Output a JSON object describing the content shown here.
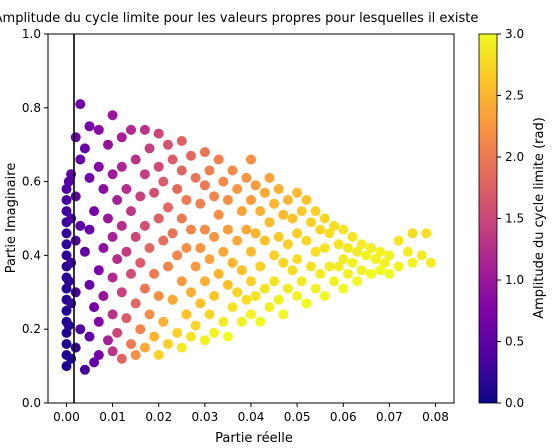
{
  "chart_data": {
    "type": "scatter",
    "title": "Amplitude du cycle limite pour les valeurs propres pour lesquelles il existe",
    "xlabel": "Partie réelle",
    "ylabel": "Partie Imaginaire",
    "xlim": [
      -0.004,
      0.084
    ],
    "ylim": [
      0.0,
      1.0
    ],
    "xticks": [
      0.0,
      0.01,
      0.02,
      0.03,
      0.04,
      0.05,
      0.06,
      0.07,
      0.08
    ],
    "xtick_labels": [
      "0.00",
      "0.01",
      "0.02",
      "0.03",
      "0.04",
      "0.05",
      "0.06",
      "0.07",
      "0.08"
    ],
    "yticks": [
      0.0,
      0.2,
      0.4,
      0.6,
      0.8,
      1.0
    ],
    "ytick_labels": [
      "0.0",
      "0.2",
      "0.4",
      "0.6",
      "0.8",
      "1.0"
    ],
    "vertical_line_x": 0.0,
    "grid": false,
    "colormap": "plasma",
    "colorbar": {
      "label": "Amplitude du cycle limite (rad)",
      "range": [
        0.0,
        3.0
      ],
      "ticks": [
        0.0,
        0.5,
        1.0,
        1.5,
        2.0,
        2.5,
        3.0
      ],
      "tick_labels": [
        "0.0",
        "0.5",
        "1.0",
        "1.5",
        "2.0",
        "2.5",
        "3.0"
      ]
    },
    "points": [
      [
        0.0,
        0.58,
        0.4
      ],
      [
        0.0,
        0.55,
        0.35
      ],
      [
        0.0,
        0.52,
        0.3
      ],
      [
        0.0,
        0.49,
        0.28
      ],
      [
        0.0,
        0.46,
        0.25
      ],
      [
        0.0,
        0.43,
        0.22
      ],
      [
        0.0,
        0.4,
        0.2
      ],
      [
        0.0,
        0.37,
        0.18
      ],
      [
        0.0,
        0.34,
        0.17
      ],
      [
        0.0,
        0.31,
        0.15
      ],
      [
        0.0,
        0.28,
        0.14
      ],
      [
        0.0,
        0.25,
        0.13
      ],
      [
        0.0,
        0.22,
        0.12
      ],
      [
        0.0,
        0.19,
        0.11
      ],
      [
        0.0,
        0.16,
        0.1
      ],
      [
        0.0,
        0.13,
        0.1
      ],
      [
        0.0,
        0.1,
        0.1
      ],
      [
        0.0005,
        0.6,
        0.45
      ],
      [
        0.0005,
        0.33,
        0.2
      ],
      [
        0.0005,
        0.21,
        0.15
      ],
      [
        0.001,
        0.62,
        0.5
      ],
      [
        0.001,
        0.5,
        0.4
      ],
      [
        0.001,
        0.38,
        0.3
      ],
      [
        0.001,
        0.27,
        0.25
      ],
      [
        0.001,
        0.12,
        0.15
      ],
      [
        0.002,
        0.72,
        0.6
      ],
      [
        0.002,
        0.56,
        0.5
      ],
      [
        0.002,
        0.44,
        0.45
      ],
      [
        0.002,
        0.3,
        0.35
      ],
      [
        0.002,
        0.15,
        0.25
      ],
      [
        0.003,
        0.81,
        0.65
      ],
      [
        0.003,
        0.66,
        0.55
      ],
      [
        0.003,
        0.48,
        0.5
      ],
      [
        0.003,
        0.2,
        0.4
      ],
      [
        0.004,
        0.69,
        0.6
      ],
      [
        0.004,
        0.41,
        0.55
      ],
      [
        0.004,
        0.09,
        0.35
      ],
      [
        0.005,
        0.75,
        0.7
      ],
      [
        0.005,
        0.61,
        0.65
      ],
      [
        0.005,
        0.47,
        0.6
      ],
      [
        0.005,
        0.32,
        0.6
      ],
      [
        0.005,
        0.18,
        0.55
      ],
      [
        0.006,
        0.52,
        0.7
      ],
      [
        0.006,
        0.26,
        0.65
      ],
      [
        0.006,
        0.11,
        0.55
      ],
      [
        0.007,
        0.74,
        0.85
      ],
      [
        0.007,
        0.64,
        0.8
      ],
      [
        0.007,
        0.36,
        0.75
      ],
      [
        0.007,
        0.22,
        0.8
      ],
      [
        0.007,
        0.13,
        0.7
      ],
      [
        0.008,
        0.58,
        0.85
      ],
      [
        0.008,
        0.42,
        0.9
      ],
      [
        0.008,
        0.29,
        0.95
      ],
      [
        0.009,
        0.7,
        0.95
      ],
      [
        0.009,
        0.5,
        1.0
      ],
      [
        0.009,
        0.17,
        1.1
      ],
      [
        0.01,
        0.78,
        1.0
      ],
      [
        0.01,
        0.62,
        1.05
      ],
      [
        0.01,
        0.45,
        1.1
      ],
      [
        0.01,
        0.34,
        1.2
      ],
      [
        0.01,
        0.24,
        1.3
      ],
      [
        0.01,
        0.14,
        1.3
      ],
      [
        0.011,
        0.55,
        1.1
      ],
      [
        0.011,
        0.39,
        1.25
      ],
      [
        0.011,
        0.19,
        1.5
      ],
      [
        0.012,
        0.72,
        1.1
      ],
      [
        0.012,
        0.64,
        1.15
      ],
      [
        0.012,
        0.48,
        1.25
      ],
      [
        0.012,
        0.3,
        1.45
      ],
      [
        0.012,
        0.12,
        1.8
      ],
      [
        0.013,
        0.58,
        1.25
      ],
      [
        0.013,
        0.41,
        1.4
      ],
      [
        0.013,
        0.23,
        1.7
      ],
      [
        0.014,
        0.74,
        1.2
      ],
      [
        0.014,
        0.52,
        1.35
      ],
      [
        0.014,
        0.35,
        1.55
      ],
      [
        0.014,
        0.16,
        2.0
      ],
      [
        0.015,
        0.66,
        1.3
      ],
      [
        0.015,
        0.45,
        1.5
      ],
      [
        0.015,
        0.27,
        1.8
      ],
      [
        0.015,
        0.13,
        2.2
      ],
      [
        0.016,
        0.56,
        1.45
      ],
      [
        0.016,
        0.38,
        1.7
      ],
      [
        0.016,
        0.2,
        2.1
      ],
      [
        0.017,
        0.74,
        1.3
      ],
      [
        0.017,
        0.62,
        1.4
      ],
      [
        0.017,
        0.48,
        1.6
      ],
      [
        0.017,
        0.31,
        1.95
      ],
      [
        0.017,
        0.15,
        2.4
      ],
      [
        0.018,
        0.69,
        1.45
      ],
      [
        0.018,
        0.42,
        1.8
      ],
      [
        0.018,
        0.24,
        2.2
      ],
      [
        0.019,
        0.57,
        1.6
      ],
      [
        0.019,
        0.35,
        2.0
      ],
      [
        0.019,
        0.18,
        2.5
      ],
      [
        0.02,
        0.73,
        1.5
      ],
      [
        0.02,
        0.64,
        1.55
      ],
      [
        0.02,
        0.5,
        1.75
      ],
      [
        0.02,
        0.29,
        2.2
      ],
      [
        0.02,
        0.13,
        2.7
      ],
      [
        0.021,
        0.6,
        1.7
      ],
      [
        0.021,
        0.44,
        1.9
      ],
      [
        0.021,
        0.22,
        2.45
      ],
      [
        0.022,
        0.7,
        1.6
      ],
      [
        0.022,
        0.53,
        1.8
      ],
      [
        0.022,
        0.37,
        2.1
      ],
      [
        0.022,
        0.16,
        2.7
      ],
      [
        0.023,
        0.66,
        1.7
      ],
      [
        0.023,
        0.46,
        1.95
      ],
      [
        0.023,
        0.28,
        2.4
      ],
      [
        0.024,
        0.58,
        1.85
      ],
      [
        0.024,
        0.4,
        2.1
      ],
      [
        0.024,
        0.19,
        2.7
      ],
      [
        0.025,
        0.71,
        1.75
      ],
      [
        0.025,
        0.63,
        1.8
      ],
      [
        0.025,
        0.5,
        2.0
      ],
      [
        0.025,
        0.33,
        2.3
      ],
      [
        0.025,
        0.15,
        2.9
      ],
      [
        0.026,
        0.55,
        2.0
      ],
      [
        0.026,
        0.42,
        2.2
      ],
      [
        0.026,
        0.24,
        2.6
      ],
      [
        0.027,
        0.67,
        1.85
      ],
      [
        0.027,
        0.47,
        2.1
      ],
      [
        0.027,
        0.3,
        2.45
      ],
      [
        0.027,
        0.18,
        2.85
      ],
      [
        0.028,
        0.61,
        1.95
      ],
      [
        0.028,
        0.37,
        2.3
      ],
      [
        0.028,
        0.21,
        2.75
      ],
      [
        0.029,
        0.54,
        2.05
      ],
      [
        0.029,
        0.42,
        2.25
      ],
      [
        0.029,
        0.27,
        2.6
      ],
      [
        0.03,
        0.68,
        1.95
      ],
      [
        0.03,
        0.59,
        2.0
      ],
      [
        0.03,
        0.47,
        2.15
      ],
      [
        0.03,
        0.33,
        2.45
      ],
      [
        0.03,
        0.17,
        2.95
      ],
      [
        0.031,
        0.63,
        2.05
      ],
      [
        0.031,
        0.39,
        2.35
      ],
      [
        0.031,
        0.24,
        2.75
      ],
      [
        0.032,
        0.56,
        2.1
      ],
      [
        0.032,
        0.45,
        2.25
      ],
      [
        0.032,
        0.29,
        2.65
      ],
      [
        0.032,
        0.19,
        2.95
      ],
      [
        0.033,
        0.66,
        2.05
      ],
      [
        0.033,
        0.51,
        2.2
      ],
      [
        0.033,
        0.35,
        2.5
      ],
      [
        0.034,
        0.6,
        2.15
      ],
      [
        0.034,
        0.41,
        2.4
      ],
      [
        0.034,
        0.22,
        2.9
      ],
      [
        0.035,
        0.55,
        2.2
      ],
      [
        0.035,
        0.47,
        2.3
      ],
      [
        0.035,
        0.32,
        2.6
      ],
      [
        0.035,
        0.18,
        3.0
      ],
      [
        0.036,
        0.63,
        2.15
      ],
      [
        0.036,
        0.38,
        2.5
      ],
      [
        0.036,
        0.26,
        2.85
      ],
      [
        0.037,
        0.58,
        2.25
      ],
      [
        0.037,
        0.44,
        2.4
      ],
      [
        0.037,
        0.3,
        2.75
      ],
      [
        0.038,
        0.52,
        2.35
      ],
      [
        0.038,
        0.36,
        2.6
      ],
      [
        0.038,
        0.22,
        2.95
      ],
      [
        0.039,
        0.61,
        2.25
      ],
      [
        0.039,
        0.47,
        2.4
      ],
      [
        0.039,
        0.28,
        2.8
      ],
      [
        0.04,
        0.66,
        2.2
      ],
      [
        0.04,
        0.55,
        2.3
      ],
      [
        0.04,
        0.41,
        2.55
      ],
      [
        0.04,
        0.33,
        2.7
      ],
      [
        0.04,
        0.24,
        2.95
      ],
      [
        0.041,
        0.59,
        2.3
      ],
      [
        0.041,
        0.46,
        2.5
      ],
      [
        0.041,
        0.29,
        2.85
      ],
      [
        0.042,
        0.52,
        2.45
      ],
      [
        0.042,
        0.37,
        2.7
      ],
      [
        0.042,
        0.22,
        3.0
      ],
      [
        0.043,
        0.57,
        2.4
      ],
      [
        0.043,
        0.44,
        2.6
      ],
      [
        0.043,
        0.31,
        2.85
      ],
      [
        0.044,
        0.61,
        2.35
      ],
      [
        0.044,
        0.49,
        2.55
      ],
      [
        0.044,
        0.26,
        2.95
      ],
      [
        0.045,
        0.54,
        2.5
      ],
      [
        0.045,
        0.4,
        2.7
      ],
      [
        0.045,
        0.33,
        2.85
      ],
      [
        0.046,
        0.58,
        2.45
      ],
      [
        0.046,
        0.45,
        2.65
      ],
      [
        0.046,
        0.28,
        2.95
      ],
      [
        0.047,
        0.51,
        2.55
      ],
      [
        0.047,
        0.38,
        2.75
      ],
      [
        0.047,
        0.24,
        3.0
      ],
      [
        0.048,
        0.55,
        2.5
      ],
      [
        0.048,
        0.43,
        2.7
      ],
      [
        0.048,
        0.31,
        2.9
      ],
      [
        0.049,
        0.5,
        2.6
      ],
      [
        0.049,
        0.36,
        2.8
      ],
      [
        0.05,
        0.57,
        2.55
      ],
      [
        0.05,
        0.46,
        2.7
      ],
      [
        0.05,
        0.39,
        2.8
      ],
      [
        0.05,
        0.29,
        2.95
      ],
      [
        0.051,
        0.52,
        2.65
      ],
      [
        0.051,
        0.33,
        2.9
      ],
      [
        0.052,
        0.55,
        2.6
      ],
      [
        0.052,
        0.44,
        2.75
      ],
      [
        0.052,
        0.27,
        3.0
      ],
      [
        0.053,
        0.49,
        2.7
      ],
      [
        0.053,
        0.37,
        2.85
      ],
      [
        0.054,
        0.52,
        2.7
      ],
      [
        0.054,
        0.41,
        2.8
      ],
      [
        0.054,
        0.31,
        2.95
      ],
      [
        0.055,
        0.47,
        2.75
      ],
      [
        0.055,
        0.35,
        2.9
      ],
      [
        0.056,
        0.5,
        2.75
      ],
      [
        0.056,
        0.42,
        2.85
      ],
      [
        0.056,
        0.29,
        3.0
      ],
      [
        0.057,
        0.46,
        2.8
      ],
      [
        0.057,
        0.37,
        2.9
      ],
      [
        0.058,
        0.48,
        2.8
      ],
      [
        0.058,
        0.33,
        2.95
      ],
      [
        0.059,
        0.43,
        2.85
      ],
      [
        0.059,
        0.37,
        2.9
      ],
      [
        0.06,
        0.47,
        2.85
      ],
      [
        0.06,
        0.39,
        2.9
      ],
      [
        0.06,
        0.31,
        3.0
      ],
      [
        0.061,
        0.42,
        2.9
      ],
      [
        0.061,
        0.35,
        2.95
      ],
      [
        0.062,
        0.45,
        2.85
      ],
      [
        0.062,
        0.38,
        2.95
      ],
      [
        0.063,
        0.41,
        2.9
      ],
      [
        0.063,
        0.33,
        3.0
      ],
      [
        0.064,
        0.43,
        2.9
      ],
      [
        0.064,
        0.36,
        2.95
      ],
      [
        0.065,
        0.4,
        2.95
      ],
      [
        0.066,
        0.42,
        2.9
      ],
      [
        0.066,
        0.35,
        3.0
      ],
      [
        0.067,
        0.39,
        2.95
      ],
      [
        0.068,
        0.41,
        2.95
      ],
      [
        0.068,
        0.36,
        3.0
      ],
      [
        0.069,
        0.38,
        2.95
      ],
      [
        0.07,
        0.4,
        2.95
      ],
      [
        0.07,
        0.35,
        3.0
      ],
      [
        0.072,
        0.44,
        2.85
      ],
      [
        0.072,
        0.37,
        2.95
      ],
      [
        0.074,
        0.41,
        2.9
      ],
      [
        0.075,
        0.46,
        2.8
      ],
      [
        0.075,
        0.38,
        2.95
      ],
      [
        0.077,
        0.4,
        2.9
      ],
      [
        0.078,
        0.46,
        2.8
      ],
      [
        0.079,
        0.38,
        2.9
      ]
    ]
  }
}
